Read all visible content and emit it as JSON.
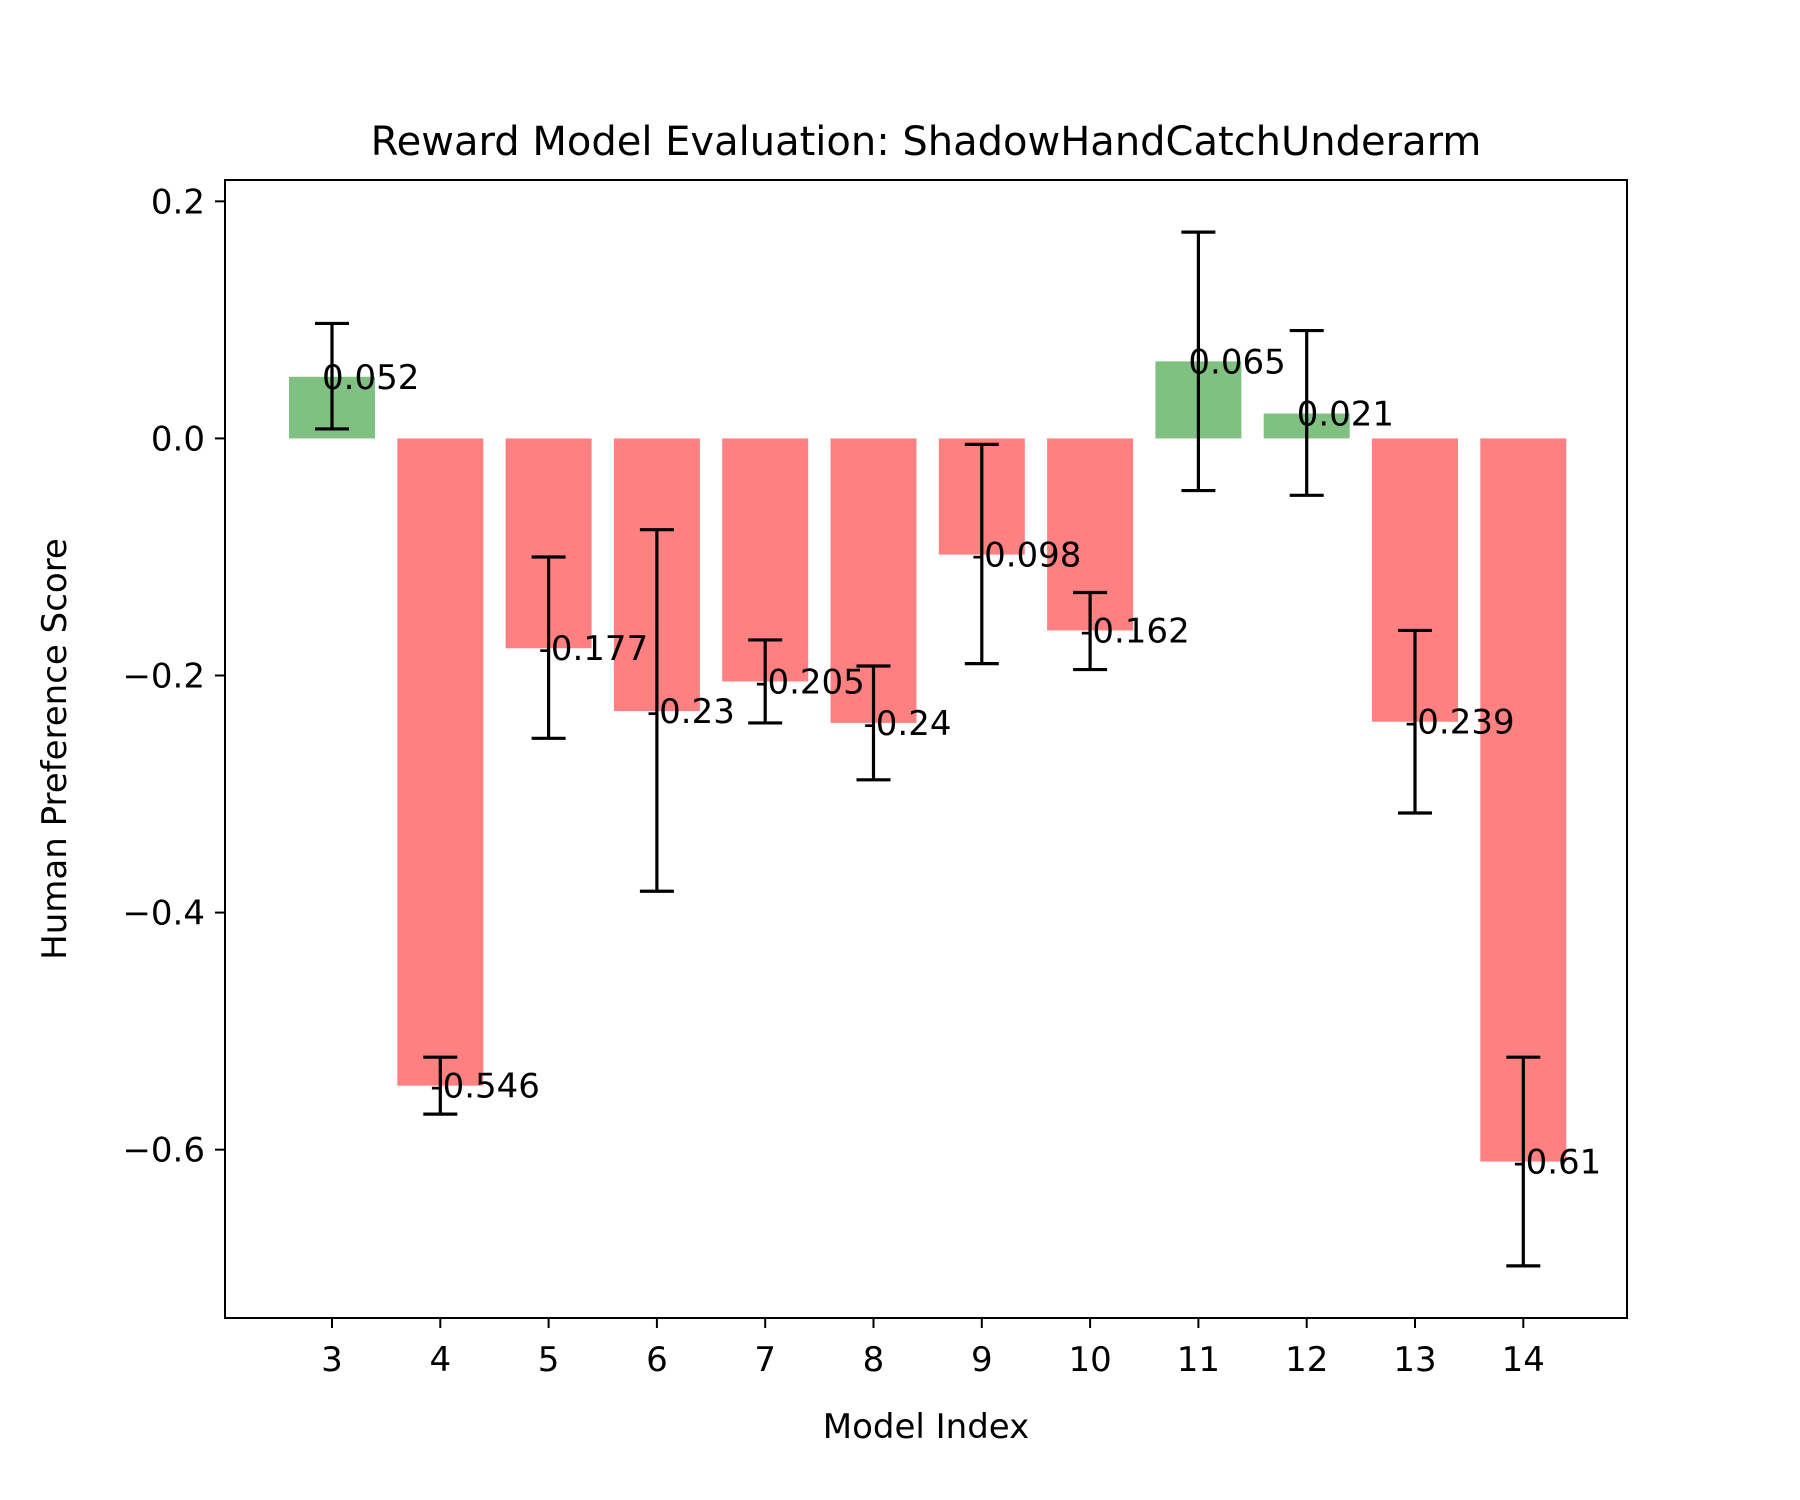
{
  "colors": {
    "positive": "#80c080",
    "negative": "#ff8080",
    "errorbar": "#000000",
    "axes": "#000000"
  },
  "chart_data": {
    "type": "bar",
    "title": "Reward Model Evaluation: ShadowHandCatchUnderarm",
    "xlabel": "Model Index",
    "ylabel": "Human Preference Score",
    "categories": [
      "3",
      "4",
      "5",
      "6",
      "7",
      "8",
      "9",
      "10",
      "11",
      "12",
      "13",
      "14"
    ],
    "values": [
      0.052,
      -0.546,
      -0.177,
      -0.23,
      -0.205,
      -0.24,
      -0.098,
      -0.162,
      0.065,
      0.021,
      -0.239,
      -0.61
    ],
    "value_labels": [
      "0.052",
      "-0.546",
      "-0.177",
      "-0.23",
      "-0.205",
      "-0.24",
      "-0.098",
      "-0.162",
      "0.065",
      "0.021",
      "-0.239",
      "-0.61"
    ],
    "error_lower": [
      0.008,
      -0.57,
      -0.253,
      -0.382,
      -0.24,
      -0.288,
      -0.19,
      -0.195,
      -0.044,
      -0.048,
      -0.316,
      -0.698
    ],
    "error_upper": [
      0.097,
      -0.522,
      -0.1,
      -0.077,
      -0.17,
      -0.192,
      -0.005,
      -0.13,
      0.174,
      0.091,
      -0.162,
      -0.522
    ],
    "ylim": [
      -0.742,
      0.218
    ],
    "yticks": [
      0.2,
      0.0,
      -0.2,
      -0.4,
      -0.6
    ],
    "ytick_labels": [
      "0.2",
      "0.0",
      "−0.2",
      "−0.4",
      "−0.6"
    ],
    "grid": false,
    "legend": "none"
  }
}
